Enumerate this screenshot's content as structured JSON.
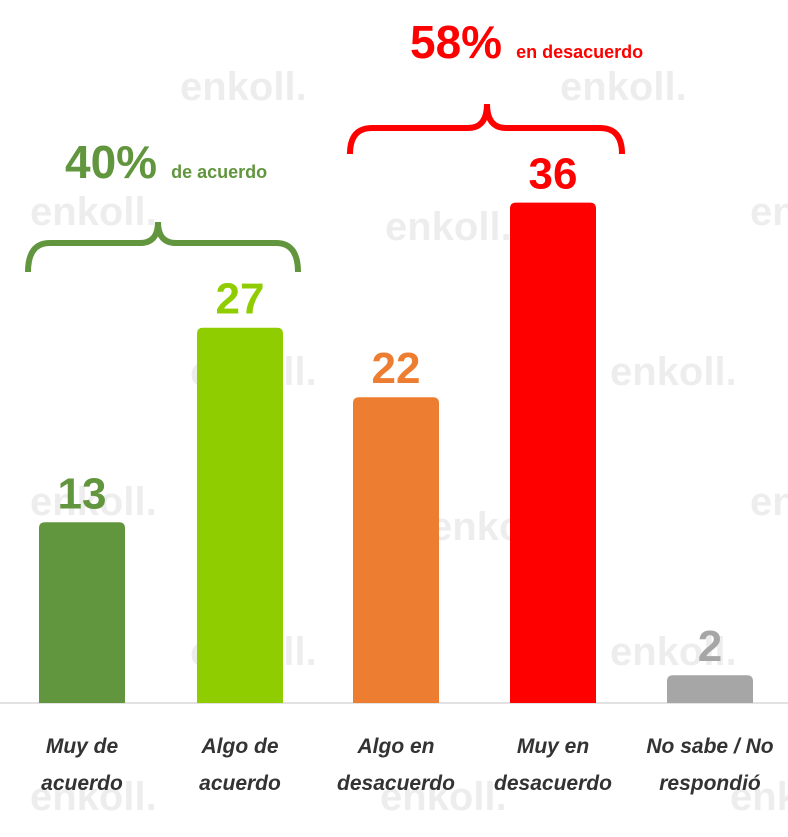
{
  "chart_data": {
    "type": "bar",
    "categories": [
      "Muy de acuerdo",
      "Algo de acuerdo",
      "Algo en desacuerdo",
      "Muy en desacuerdo",
      "No sabe / No respondió"
    ],
    "values": [
      13,
      27,
      22,
      36,
      2
    ],
    "colors": [
      "#62963e",
      "#8fcc00",
      "#ed7d31",
      "#ff0000",
      "#a6a6a6"
    ],
    "annotations": [
      {
        "text": "40%",
        "subtext": "de acuerdo",
        "color": "#62963e"
      },
      {
        "text": "58%",
        "subtext": "en desacuerdo",
        "color": "#ff0000"
      }
    ],
    "watermark": "enkoll."
  }
}
